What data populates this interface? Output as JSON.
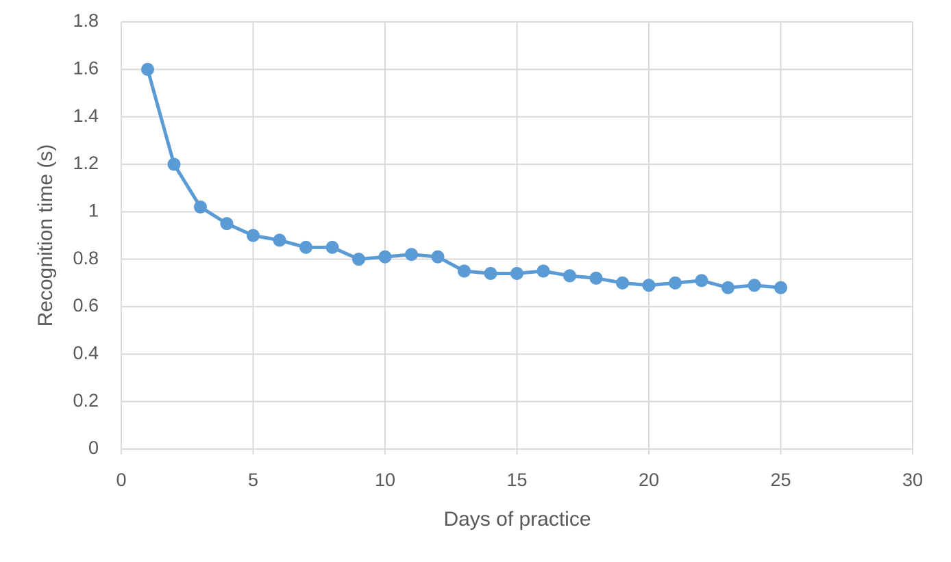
{
  "chart_data": {
    "type": "line",
    "xlabel": "Days of practice",
    "ylabel": "Recognition time (s)",
    "x": [
      1,
      2,
      3,
      4,
      5,
      6,
      7,
      8,
      9,
      10,
      11,
      12,
      13,
      14,
      15,
      16,
      17,
      18,
      19,
      20,
      21,
      22,
      23,
      24,
      25
    ],
    "values": [
      1.6,
      1.2,
      1.02,
      0.95,
      0.9,
      0.88,
      0.85,
      0.85,
      0.8,
      0.81,
      0.82,
      0.81,
      0.75,
      0.74,
      0.74,
      0.75,
      0.73,
      0.72,
      0.7,
      0.69,
      0.7,
      0.71,
      0.68,
      0.69,
      0.68
    ],
    "color": "#5b9bd5",
    "xlim": [
      0,
      30
    ],
    "xticks": [
      0,
      5,
      10,
      15,
      20,
      25,
      30
    ],
    "ylim": [
      0,
      1.8
    ],
    "yticks": [
      0,
      0.2,
      0.4,
      0.6,
      0.8,
      1,
      1.2,
      1.4,
      1.6,
      1.8
    ],
    "grid": true
  }
}
